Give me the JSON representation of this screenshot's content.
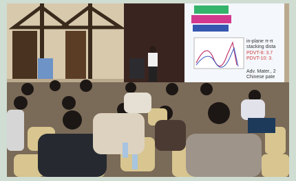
{
  "slide": {
    "lines": [
      "in-plane π-π",
      "stacking dista",
      "PDVT-8: 3.7",
      "PDVT-10: 3.",
      "Adv. Mater., 2",
      "Chinese pate"
    ]
  }
}
